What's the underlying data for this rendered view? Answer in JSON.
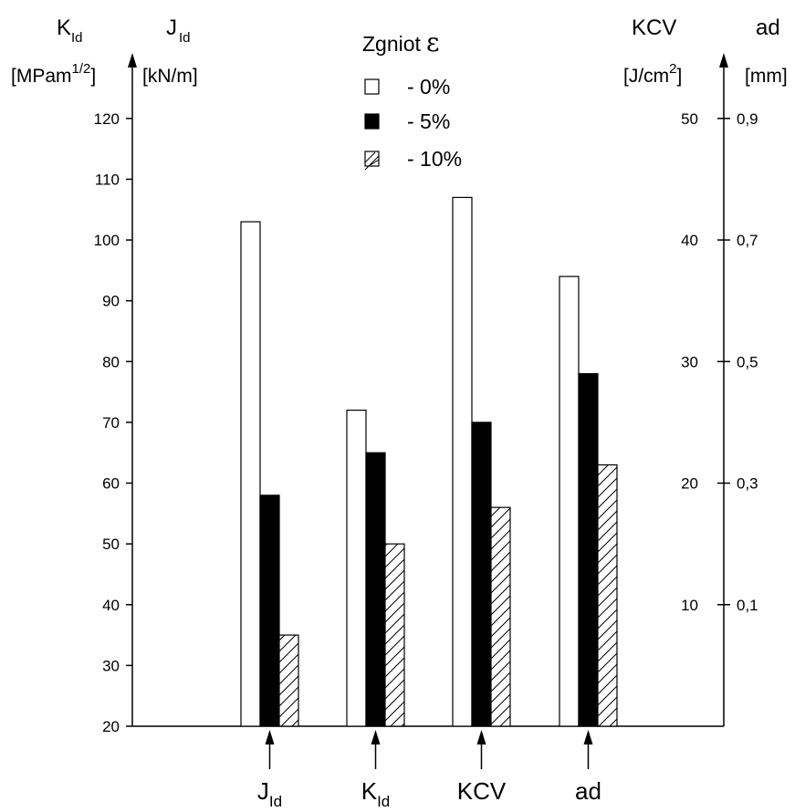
{
  "chart_data": {
    "type": "bar",
    "title": "",
    "categories": [
      "J_Id",
      "K_Id",
      "KCV",
      "ad"
    ],
    "category_labels": [
      {
        "main": "J",
        "sub": "Id"
      },
      {
        "main": "K",
        "sub": "Id"
      },
      {
        "main": "KCV",
        "sub": ""
      },
      {
        "main": "ad",
        "sub": ""
      }
    ],
    "series": [
      {
        "name": "- 0%",
        "fill": "open",
        "values": [
          103,
          72,
          107,
          94
        ]
      },
      {
        "name": "- 5%",
        "fill": "solid",
        "values": [
          58,
          65,
          70,
          78
        ]
      },
      {
        "name": "- 10%",
        "fill": "hatched",
        "values": [
          35,
          50,
          56,
          63
        ]
      }
    ],
    "legend": {
      "title": "Zgniot",
      "symbol": "ε",
      "placement": "top-center"
    },
    "left_axis": {
      "ylim": [
        20,
        125
      ],
      "ticks": [
        20,
        30,
        40,
        50,
        60,
        70,
        80,
        90,
        100,
        110,
        120
      ],
      "labels": [
        {
          "main": "K",
          "sub": "Id",
          "unit_main": "[MPam",
          "unit_sup": "1/2",
          "unit_end": "]"
        },
        {
          "main": "J",
          "sub": "Id",
          "unit_main": "[kN/m]",
          "unit_sup": "",
          "unit_end": ""
        }
      ]
    },
    "right_axis_kcv": {
      "label": "KCV",
      "unit_main": "[J/cm",
      "unit_sup": "2",
      "unit_end": "]",
      "range": [
        0,
        52.5
      ],
      "ticks": [
        {
          "value": 10,
          "label": "10"
        },
        {
          "value": 20,
          "label": "20"
        },
        {
          "value": 30,
          "label": "30"
        },
        {
          "value": 40,
          "label": "40"
        },
        {
          "value": 50,
          "label": "50"
        }
      ]
    },
    "right_axis_ad": {
      "label": "ad",
      "unit": "[mm]",
      "range": [
        -0.1,
        0.95
      ],
      "ticks": [
        {
          "value": 0.1,
          "label": "0,1"
        },
        {
          "value": 0.3,
          "label": "0,3"
        },
        {
          "value": 0.5,
          "label": "0,5"
        },
        {
          "value": 0.7,
          "label": "0,7"
        },
        {
          "value": 0.9,
          "label": "0,9"
        }
      ]
    },
    "grid": false
  }
}
